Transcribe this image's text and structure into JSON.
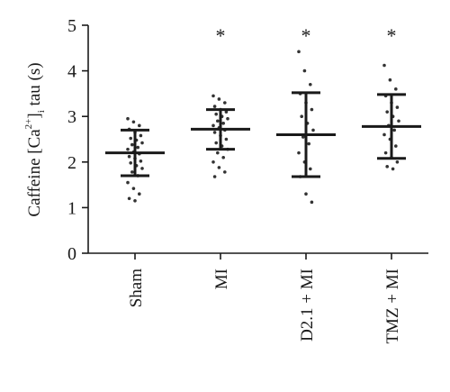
{
  "chart_data": {
    "type": "scatter",
    "ylabel": {
      "prefix": "Caffeine [Ca",
      "superscript": "2+",
      "bracket": "]",
      "subscript": "i",
      "suffix": " tau (s)"
    },
    "ylim": [
      0,
      5
    ],
    "yticks": [
      "0",
      "1",
      "2",
      "3",
      "4",
      "5"
    ],
    "categories": [
      "Sham",
      "MI",
      "D2.1 + MI",
      "TMZ + MI"
    ],
    "significance": [
      "",
      "*",
      "*",
      "*"
    ],
    "mean": [
      2.2,
      2.72,
      2.6,
      2.78
    ],
    "sd_upper": [
      2.7,
      3.15,
      3.52,
      3.48
    ],
    "sd_lower": [
      1.7,
      2.28,
      1.68,
      2.08
    ],
    "points": [
      [
        2.95,
        2.88,
        2.8,
        2.72,
        2.65,
        2.58,
        2.52,
        2.48,
        2.42,
        2.38,
        2.32,
        2.28,
        2.22,
        2.18,
        2.12,
        2.08,
        2.02,
        1.98,
        1.92,
        1.86,
        1.78,
        1.7,
        1.55,
        1.42,
        1.3,
        1.2,
        1.15
      ],
      [
        3.45,
        3.38,
        3.3,
        3.22,
        3.15,
        3.1,
        3.05,
        3.0,
        2.95,
        2.9,
        2.85,
        2.8,
        2.75,
        2.7,
        2.65,
        2.58,
        2.5,
        2.42,
        2.35,
        2.28,
        2.2,
        2.1,
        2.0,
        1.88,
        1.78,
        1.68
      ],
      [
        4.42,
        4.0,
        3.7,
        3.5,
        3.3,
        3.15,
        3.0,
        2.85,
        2.7,
        2.55,
        2.4,
        2.2,
        2.0,
        1.85,
        1.68,
        1.3,
        1.12
      ],
      [
        4.12,
        3.8,
        3.6,
        3.45,
        3.3,
        3.2,
        3.1,
        3.0,
        2.9,
        2.8,
        2.7,
        2.6,
        2.5,
        2.35,
        2.2,
        2.1,
        2.0,
        1.9,
        1.85
      ]
    ]
  }
}
